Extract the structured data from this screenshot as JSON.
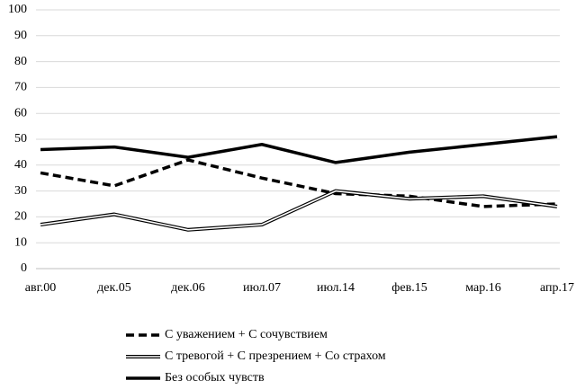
{
  "chart_data": {
    "type": "line",
    "categories": [
      "авг.00",
      "дек.05",
      "дек.06",
      "июл.07",
      "июл.14",
      "фев.15",
      "мар.16",
      "апр.17"
    ],
    "series": [
      {
        "name": "С уважением + С сочувствием",
        "color": "#000000",
        "style": "dashed",
        "values": [
          37,
          32,
          42,
          35,
          29,
          28,
          24,
          25
        ]
      },
      {
        "name": "С тревогой + С презрением + Со страхом",
        "color": "#000000",
        "style": "double",
        "values": [
          17,
          21,
          15,
          17,
          30,
          27,
          28,
          24
        ]
      },
      {
        "name": "Без особых чувств",
        "color": "#000000",
        "style": "solid",
        "values": [
          46,
          47,
          43,
          48,
          41,
          45,
          48,
          51
        ]
      }
    ],
    "ylim": [
      0,
      100
    ],
    "yticks": [
      0,
      10,
      20,
      30,
      40,
      50,
      60,
      70,
      80,
      90,
      100
    ],
    "grid": true,
    "legend": "bottom"
  }
}
